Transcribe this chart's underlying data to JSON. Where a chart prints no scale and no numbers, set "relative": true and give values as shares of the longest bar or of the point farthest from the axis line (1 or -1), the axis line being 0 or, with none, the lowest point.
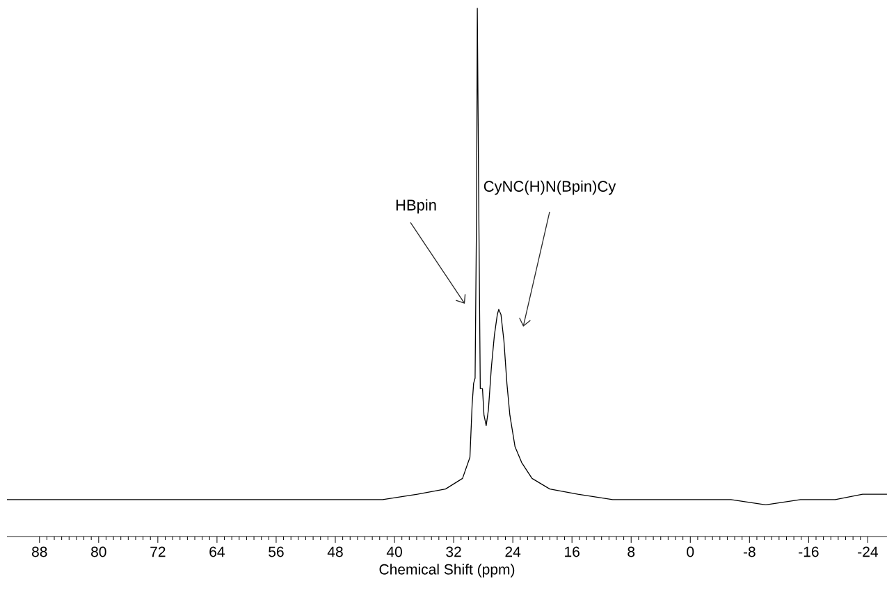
{
  "chart_data": {
    "type": "line",
    "relative": true,
    "xlabel": "Chemical Shift (ppm)",
    "xlim": [
      92.4,
      -26.6
    ],
    "xticks": [
      88,
      80,
      72,
      64,
      56,
      48,
      40,
      32,
      24,
      16,
      8,
      0,
      -8,
      -16,
      -24
    ],
    "x": [
      92.4,
      84.0,
      74.5,
      65.1,
      55.7,
      48.2,
      41.6,
      36.9,
      33.1,
      30.8,
      29.8,
      29.5,
      29.3,
      29.1,
      28.9,
      28.8,
      28.6,
      28.4,
      28.1,
      27.9,
      27.6,
      27.3,
      26.9,
      26.5,
      26.1,
      25.9,
      25.6,
      25.2,
      24.8,
      24.4,
      23.7,
      22.8,
      21.4,
      19.0,
      15.2,
      10.5,
      3.9,
      -0.8,
      -5.5,
      -10.2,
      -14.9,
      -19.6,
      -23.3,
      -26.6
    ],
    "series": [
      {
        "color": "#000000",
        "values": [
          0.07,
          0.07,
          0.07,
          0.07,
          0.07,
          0.07,
          0.07,
          0.08,
          0.09,
          0.11,
          0.15,
          0.25,
          0.29,
          0.3,
          0.62,
          1,
          0.62,
          0.28,
          0.28,
          0.23,
          0.21,
          0.24,
          0.32,
          0.38,
          0.42,
          0.43,
          0.42,
          0.37,
          0.29,
          0.23,
          0.17,
          0.14,
          0.11,
          0.09,
          0.08,
          0.07,
          0.07,
          0.07,
          0.07,
          0.06,
          0.07,
          0.07,
          0.08,
          0.08
        ]
      }
    ],
    "annotations": [
      "HBpin",
      "CyNC(H)N(Bpin)Cy"
    ]
  }
}
